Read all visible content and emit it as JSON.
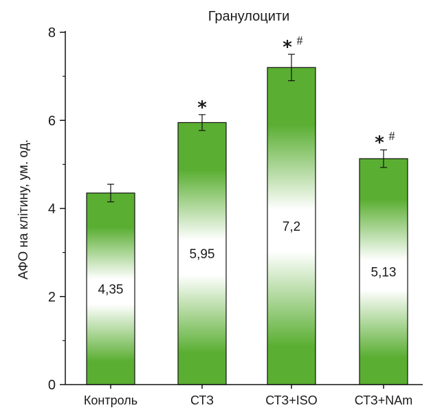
{
  "chart_data": {
    "type": "bar",
    "title": "Гранулоцити",
    "ylabel": "АФО на клітину, ум. од.",
    "xlabel": "",
    "ylim": [
      0,
      8
    ],
    "yticks": [
      "0",
      "2",
      "4",
      "6",
      "8"
    ],
    "categories": [
      "Контроль",
      "СТЗ",
      "СТЗ+ISO",
      "СТЗ+NAm"
    ],
    "values": [
      4.35,
      5.95,
      7.2,
      5.13
    ],
    "value_labels": [
      "4,35",
      "5,95",
      "7,2",
      "5,13"
    ],
    "errors": [
      0.2,
      0.18,
      0.3,
      0.2
    ],
    "markers": [
      {
        "star": "",
        "hash": ""
      },
      {
        "star": "*",
        "hash": ""
      },
      {
        "star": "*",
        "hash": "#"
      },
      {
        "star": "*",
        "hash": "#"
      }
    ],
    "bar_color_edge": "#5aae32",
    "bar_color_center": "#ffffff",
    "grid": false,
    "legend": "none"
  }
}
